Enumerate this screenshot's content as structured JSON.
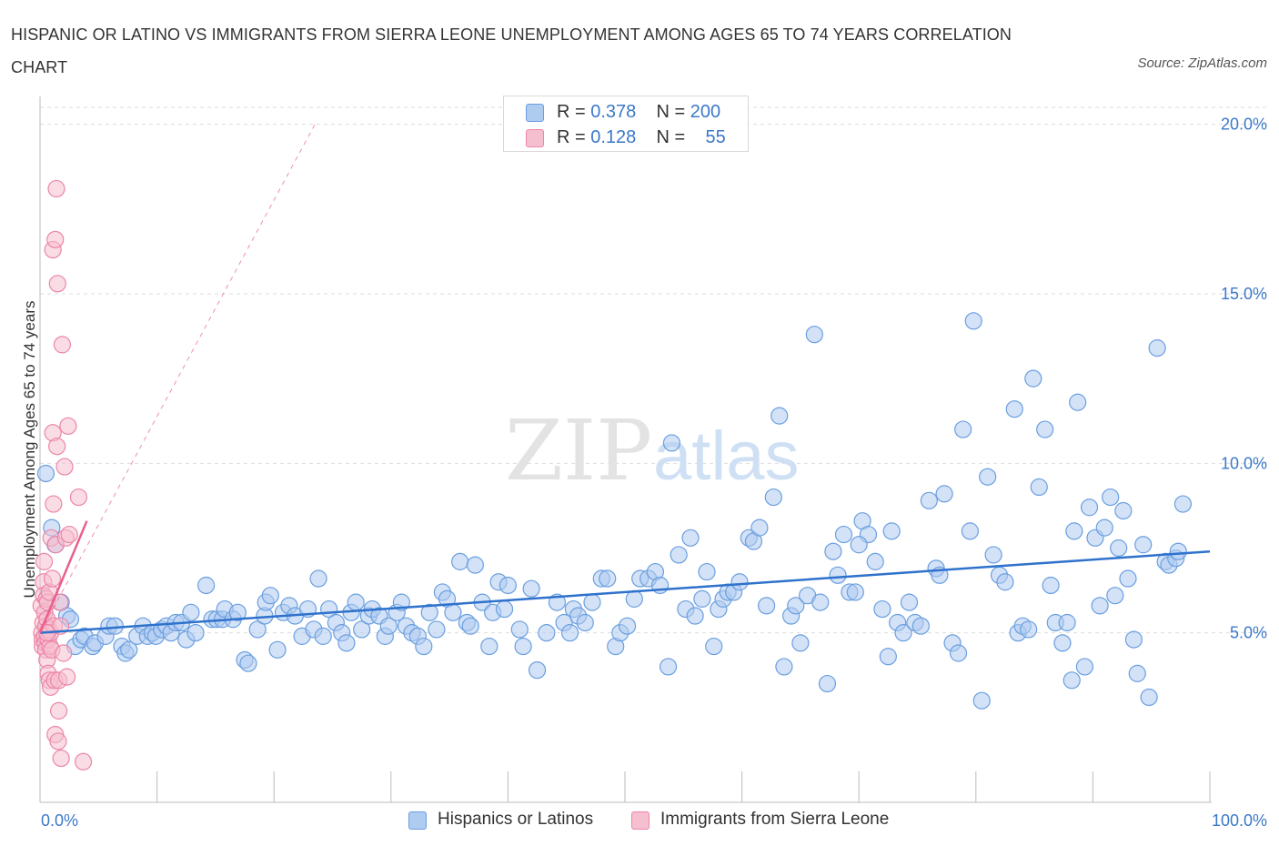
{
  "header": {
    "title": "HISPANIC OR LATINO VS IMMIGRANTS FROM SIERRA LEONE UNEMPLOYMENT AMONG AGES 65 TO 74 YEARS CORRELATION CHART",
    "source": "Source: ZipAtlas.com"
  },
  "colors": {
    "blue_fill": "#aecbf0",
    "blue_stroke": "#6a9fe0",
    "blue_line": "#2f72cc",
    "pink_fill": "#f6bfd0",
    "pink_stroke": "#ec86a8",
    "pink_line": "#e8608c",
    "grid": "#dddddd",
    "tick_text": "#3b78c8"
  },
  "legend": {
    "rows": [
      {
        "r_label": "R =",
        "r_value": "0.378",
        "n_label": "N =",
        "n_value": "200"
      },
      {
        "r_label": "R =",
        "r_value": "0.128",
        "n_label": "N =",
        "n_value": "55"
      }
    ]
  },
  "bottom_legend": {
    "series1": "Hispanics or Latinos",
    "series2": "Immigrants from Sierra Leone"
  },
  "watermark": {
    "zip": "ZIP",
    "atlas": "atlas"
  },
  "chart_data": {
    "type": "scatter",
    "title": "HISPANIC OR LATINO VS IMMIGRANTS FROM SIERRA LEONE UNEMPLOYMENT AMONG AGES 65 TO 74 YEARS CORRELATION CHART",
    "xlabel": "",
    "ylabel": "Unemployment Among Ages 65 to 74 years",
    "xlim": [
      0,
      100
    ],
    "ylim": [
      0,
      20.5
    ],
    "x_tick_labels": [
      "0.0%",
      "100.0%"
    ],
    "y_ticks": [
      5,
      10,
      15,
      20
    ],
    "y_tick_labels": [
      "5.0%",
      "10.0%",
      "15.0%",
      "20.0%"
    ],
    "series": [
      {
        "name": "Hispanics or Latinos",
        "R": 0.378,
        "N": 200,
        "trend": {
          "x": [
            0,
            100
          ],
          "y": [
            5.0,
            7.4
          ]
        },
        "points": [
          [
            0.5,
            9.7
          ],
          [
            1,
            8.1
          ],
          [
            1.3,
            7.6
          ],
          [
            1.8,
            5.9
          ],
          [
            2.3,
            5.5
          ],
          [
            2.6,
            5.4
          ],
          [
            3,
            4.6
          ],
          [
            3.5,
            4.8
          ],
          [
            3.8,
            4.9
          ],
          [
            4.5,
            4.6
          ],
          [
            4.7,
            4.7
          ],
          [
            5.6,
            4.9
          ],
          [
            5.9,
            5.2
          ],
          [
            6.4,
            5.2
          ],
          [
            7,
            4.6
          ],
          [
            7.3,
            4.4
          ],
          [
            7.6,
            4.5
          ],
          [
            8.3,
            4.9
          ],
          [
            8.8,
            5.2
          ],
          [
            9.2,
            4.9
          ],
          [
            9.6,
            5.0
          ],
          [
            9.9,
            4.9
          ],
          [
            10.4,
            5.1
          ],
          [
            10.8,
            5.2
          ],
          [
            11.2,
            5.0
          ],
          [
            11.6,
            5.3
          ],
          [
            12.1,
            5.3
          ],
          [
            12.5,
            4.8
          ],
          [
            12.9,
            5.6
          ],
          [
            13.3,
            5.0
          ],
          [
            14.2,
            6.4
          ],
          [
            14.7,
            5.4
          ],
          [
            15.1,
            5.4
          ],
          [
            15.6,
            5.4
          ],
          [
            15.8,
            5.7
          ],
          [
            16.5,
            5.4
          ],
          [
            16.9,
            5.6
          ],
          [
            17.5,
            4.2
          ],
          [
            17.8,
            4.1
          ],
          [
            18.6,
            5.1
          ],
          [
            19.2,
            5.5
          ],
          [
            19.3,
            5.9
          ],
          [
            19.7,
            6.1
          ],
          [
            20.3,
            4.5
          ],
          [
            20.8,
            5.6
          ],
          [
            21.3,
            5.8
          ],
          [
            21.8,
            5.5
          ],
          [
            22.4,
            4.9
          ],
          [
            22.9,
            5.7
          ],
          [
            23.4,
            5.1
          ],
          [
            23.8,
            6.6
          ],
          [
            24.2,
            4.9
          ],
          [
            24.7,
            5.7
          ],
          [
            25.3,
            5.3
          ],
          [
            25.8,
            5.0
          ],
          [
            26.2,
            4.7
          ],
          [
            26.6,
            5.6
          ],
          [
            27,
            5.9
          ],
          [
            27.5,
            5.1
          ],
          [
            28.1,
            5.5
          ],
          [
            28.4,
            5.7
          ],
          [
            29,
            5.5
          ],
          [
            29.5,
            4.9
          ],
          [
            29.8,
            5.2
          ],
          [
            30.5,
            5.6
          ],
          [
            30.9,
            5.9
          ],
          [
            31.3,
            5.2
          ],
          [
            31.8,
            5.0
          ],
          [
            32.3,
            4.9
          ],
          [
            32.8,
            4.6
          ],
          [
            33.3,
            5.6
          ],
          [
            33.9,
            5.1
          ],
          [
            34.4,
            6.2
          ],
          [
            34.8,
            6.0
          ],
          [
            35.3,
            5.6
          ],
          [
            35.9,
            7.1
          ],
          [
            36.5,
            5.3
          ],
          [
            36.8,
            5.2
          ],
          [
            37.2,
            7.0
          ],
          [
            37.8,
            5.9
          ],
          [
            38.4,
            4.6
          ],
          [
            38.7,
            5.6
          ],
          [
            39.2,
            6.5
          ],
          [
            39.7,
            5.7
          ],
          [
            40,
            6.4
          ],
          [
            41,
            5.1
          ],
          [
            41.3,
            4.6
          ],
          [
            42,
            6.3
          ],
          [
            42.5,
            3.9
          ],
          [
            43.3,
            5.0
          ],
          [
            44.2,
            5.9
          ],
          [
            44.8,
            5.3
          ],
          [
            45.3,
            5.0
          ],
          [
            45.6,
            5.7
          ],
          [
            46,
            5.5
          ],
          [
            46.6,
            5.3
          ],
          [
            47.2,
            5.9
          ],
          [
            48,
            6.6
          ],
          [
            48.5,
            6.6
          ],
          [
            49.2,
            4.6
          ],
          [
            49.6,
            5.0
          ],
          [
            50.2,
            5.2
          ],
          [
            50.8,
            6.0
          ],
          [
            51.3,
            6.6
          ],
          [
            52,
            6.6
          ],
          [
            52.6,
            6.8
          ],
          [
            53,
            6.4
          ],
          [
            53.7,
            4.0
          ],
          [
            54,
            10.6
          ],
          [
            54.6,
            7.3
          ],
          [
            55.2,
            5.7
          ],
          [
            55.6,
            7.8
          ],
          [
            56,
            5.5
          ],
          [
            56.6,
            6.0
          ],
          [
            57,
            6.8
          ],
          [
            57.6,
            4.6
          ],
          [
            58,
            5.7
          ],
          [
            58.4,
            6.0
          ],
          [
            58.8,
            6.2
          ],
          [
            59.3,
            6.2
          ],
          [
            59.8,
            6.5
          ],
          [
            60.6,
            7.8
          ],
          [
            61,
            7.7
          ],
          [
            61.5,
            8.1
          ],
          [
            62.1,
            5.8
          ],
          [
            62.7,
            9.0
          ],
          [
            63.2,
            11.4
          ],
          [
            63.6,
            4.0
          ],
          [
            64.2,
            5.5
          ],
          [
            64.6,
            5.8
          ],
          [
            65,
            4.7
          ],
          [
            65.6,
            6.1
          ],
          [
            66.2,
            13.8
          ],
          [
            66.7,
            5.9
          ],
          [
            67.3,
            3.5
          ],
          [
            67.8,
            7.4
          ],
          [
            68.2,
            6.7
          ],
          [
            68.7,
            7.9
          ],
          [
            69.2,
            6.2
          ],
          [
            69.7,
            6.2
          ],
          [
            70.3,
            8.3
          ],
          [
            70.8,
            7.9
          ],
          [
            71.4,
            7.1
          ],
          [
            72,
            5.7
          ],
          [
            72.5,
            4.3
          ],
          [
            72.8,
            8.0
          ],
          [
            73.3,
            5.3
          ],
          [
            73.8,
            5.0
          ],
          [
            74.3,
            5.9
          ],
          [
            74.8,
            5.3
          ],
          [
            75.3,
            5.2
          ],
          [
            76,
            8.9
          ],
          [
            76.6,
            6.9
          ],
          [
            76.9,
            6.7
          ],
          [
            77.3,
            9.1
          ],
          [
            78,
            4.7
          ],
          [
            78.5,
            4.4
          ],
          [
            78.9,
            11.0
          ],
          [
            79.5,
            8.0
          ],
          [
            79.8,
            14.2
          ],
          [
            80.5,
            3.0
          ],
          [
            81,
            9.6
          ],
          [
            81.5,
            7.3
          ],
          [
            82,
            6.7
          ],
          [
            82.5,
            6.5
          ],
          [
            83.3,
            11.6
          ],
          [
            83.6,
            5.0
          ],
          [
            84,
            5.2
          ],
          [
            84.5,
            5.1
          ],
          [
            84.9,
            12.5
          ],
          [
            85.4,
            9.3
          ],
          [
            85.9,
            11.0
          ],
          [
            86.4,
            6.4
          ],
          [
            86.8,
            5.3
          ],
          [
            87.4,
            4.7
          ],
          [
            87.8,
            5.3
          ],
          [
            88.2,
            3.6
          ],
          [
            88.4,
            8.0
          ],
          [
            88.7,
            11.8
          ],
          [
            89.3,
            4.0
          ],
          [
            89.7,
            8.7
          ],
          [
            90.2,
            7.8
          ],
          [
            90.6,
            5.8
          ],
          [
            91,
            8.1
          ],
          [
            91.5,
            9.0
          ],
          [
            91.9,
            6.1
          ],
          [
            92.2,
            7.5
          ],
          [
            92.6,
            8.6
          ],
          [
            93,
            6.6
          ],
          [
            93.5,
            4.8
          ],
          [
            93.8,
            3.8
          ],
          [
            94.3,
            7.6
          ],
          [
            94.8,
            3.1
          ],
          [
            95.5,
            13.4
          ],
          [
            96.2,
            7.1
          ],
          [
            96.5,
            7.0
          ],
          [
            97.1,
            7.2
          ],
          [
            97.3,
            7.4
          ],
          [
            97.7,
            8.8
          ],
          [
            70,
            7.6
          ]
        ]
      },
      {
        "name": "Immigrants from Sierra Leone",
        "R": 0.128,
        "N": 55,
        "trend": {
          "x": [
            0,
            4
          ],
          "y": [
            5.0,
            8.3
          ]
        },
        "trend_extended": {
          "x": [
            0,
            23.5
          ],
          "y": [
            5.0,
            20.0
          ]
        },
        "points": [
          [
            0.1,
            5.8
          ],
          [
            0.15,
            5.0
          ],
          [
            0.2,
            4.8
          ],
          [
            0.2,
            4.6
          ],
          [
            0.25,
            5.3
          ],
          [
            0.3,
            6.5
          ],
          [
            0.3,
            6.1
          ],
          [
            0.35,
            7.1
          ],
          [
            0.4,
            5.6
          ],
          [
            0.4,
            4.9
          ],
          [
            0.45,
            4.7
          ],
          [
            0.5,
            5.2
          ],
          [
            0.5,
            4.5
          ],
          [
            0.55,
            6.0
          ],
          [
            0.6,
            5.4
          ],
          [
            0.6,
            4.2
          ],
          [
            0.65,
            5.9
          ],
          [
            0.7,
            3.8
          ],
          [
            0.7,
            4.8
          ],
          [
            0.75,
            5.1
          ],
          [
            0.8,
            6.2
          ],
          [
            0.8,
            3.6
          ],
          [
            0.85,
            4.6
          ],
          [
            0.9,
            5.0
          ],
          [
            0.9,
            3.4
          ],
          [
            0.95,
            7.8
          ],
          [
            1.0,
            4.5
          ],
          [
            1.05,
            6.6
          ],
          [
            1.1,
            16.3
          ],
          [
            1.1,
            10.9
          ],
          [
            1.15,
            8.8
          ],
          [
            1.2,
            5.2
          ],
          [
            1.25,
            3.6
          ],
          [
            1.3,
            16.6
          ],
          [
            1.3,
            2.0
          ],
          [
            1.35,
            7.6
          ],
          [
            1.4,
            18.1
          ],
          [
            1.45,
            10.5
          ],
          [
            1.5,
            15.3
          ],
          [
            1.55,
            1.8
          ],
          [
            1.6,
            3.6
          ],
          [
            1.7,
            5.9
          ],
          [
            1.75,
            5.2
          ],
          [
            1.8,
            1.3
          ],
          [
            1.9,
            13.5
          ],
          [
            2.0,
            4.4
          ],
          [
            2.1,
            9.9
          ],
          [
            2.2,
            7.8
          ],
          [
            2.3,
            3.7
          ],
          [
            2.4,
            11.1
          ],
          [
            2.5,
            7.9
          ],
          [
            1.6,
            2.7
          ],
          [
            0.6,
            5.0
          ],
          [
            3.3,
            9.0
          ],
          [
            3.7,
            1.2
          ]
        ]
      }
    ]
  }
}
